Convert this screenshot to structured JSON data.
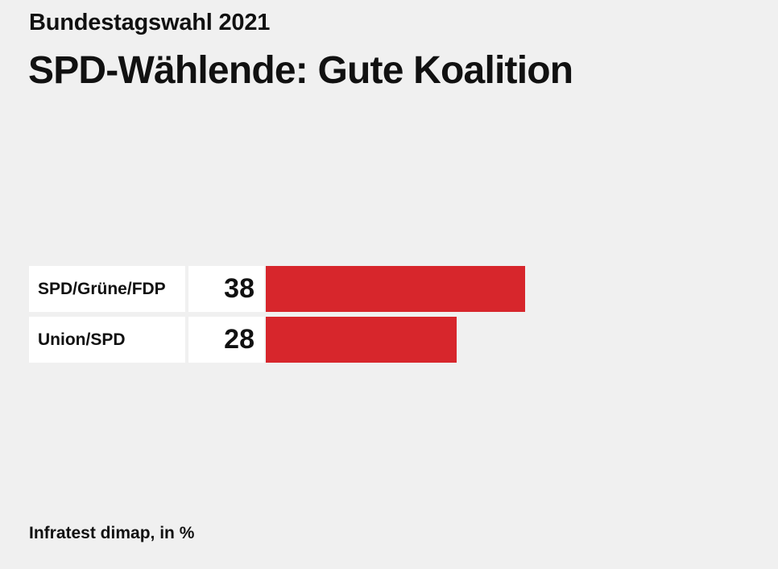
{
  "header": {
    "kicker": "Bundestagswahl 2021",
    "headline": "SPD-Wählende: Gute Koalition"
  },
  "chart_data": {
    "type": "bar",
    "orientation": "horizontal",
    "categories": [
      "SPD/Grüne/FDP",
      "Union/SPD"
    ],
    "values": [
      38,
      28
    ],
    "value_labels": [
      "38",
      "28"
    ],
    "unit": "%",
    "bar_color": "#d7262c",
    "xlim": [
      0,
      100
    ],
    "grid": false
  },
  "footer": {
    "source": "Infratest dimap, in %"
  }
}
